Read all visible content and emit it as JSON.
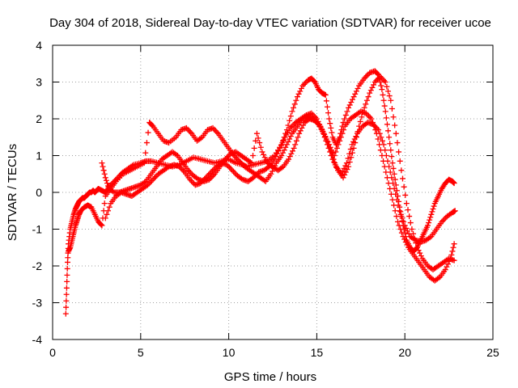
{
  "chart_data": {
    "type": "scatter",
    "title": "Day 304 of 2018, Sidereal Day-to-day VTEC variation (SDTVAR) for receiver ucoe",
    "xlabel": "GPS time / hours",
    "ylabel": "SDTVAR / TECUs",
    "xlim": [
      0,
      25
    ],
    "ylim": [
      -4,
      4
    ],
    "xticks": [
      0,
      5,
      10,
      15,
      20,
      25
    ],
    "yticks": [
      -4,
      -3,
      -2,
      -1,
      0,
      1,
      2,
      3,
      4
    ],
    "grid": true,
    "marker": "plus",
    "series_color": "#ff0000",
    "series": [
      {
        "x": [
          0.75,
          0.8,
          0.85,
          0.9,
          1.0,
          1.1,
          1.2,
          1.3,
          1.4,
          1.5,
          1.6,
          1.7,
          1.8,
          1.9,
          2.0,
          2.1,
          2.2,
          2.3,
          2.4,
          2.5,
          2.6,
          2.8,
          3.0,
          3.2,
          3.5,
          3.8,
          4.0,
          4.3,
          4.6,
          5.0,
          5.3,
          5.6,
          6.0,
          6.4,
          6.8,
          7.2,
          7.6,
          8.0,
          8.4,
          8.8,
          9.2,
          9.6,
          10.0,
          10.4,
          10.8,
          11.0,
          11.4,
          11.8,
          12.2,
          12.6,
          13.0,
          13.3,
          13.6,
          13.9,
          14.2,
          14.5,
          14.7,
          14.9,
          15.1,
          15.3,
          15.5,
          15.7,
          15.9,
          16.1,
          16.3,
          16.5,
          16.8,
          17.1,
          17.4,
          17.7,
          18.0,
          18.3,
          18.5,
          18.7,
          18.9,
          19.1,
          19.3,
          19.5,
          19.7,
          19.9,
          20.1,
          20.3,
          20.5,
          20.7,
          20.9,
          21.1,
          21.3,
          21.5,
          21.7,
          21.9,
          22.1,
          22.3,
          22.5,
          22.7,
          22.8
        ],
        "y": [
          -3.3,
          -2.6,
          -1.9,
          -1.4,
          -1.0,
          -0.8,
          -0.6,
          -0.45,
          -0.35,
          -0.25,
          -0.2,
          -0.15,
          -0.15,
          -0.1,
          -0.05,
          0.0,
          0.0,
          0.05,
          0.0,
          0.05,
          0.1,
          0.05,
          0.0,
          0.15,
          0.3,
          0.45,
          0.55,
          0.65,
          0.75,
          0.8,
          0.85,
          0.85,
          0.8,
          0.75,
          0.7,
          0.75,
          0.85,
          0.95,
          0.9,
          0.85,
          0.8,
          0.85,
          0.9,
          0.8,
          0.75,
          0.7,
          0.75,
          0.8,
          0.85,
          1.0,
          1.3,
          1.7,
          2.2,
          2.6,
          2.9,
          3.05,
          3.1,
          3.0,
          2.8,
          2.7,
          2.65,
          2.0,
          1.5,
          1.3,
          1.5,
          1.9,
          2.3,
          2.6,
          2.9,
          3.1,
          3.25,
          3.3,
          3.2,
          2.8,
          2.2,
          1.5,
          0.8,
          0.2,
          -0.4,
          -0.9,
          -1.3,
          -1.5,
          -1.6,
          -1.5,
          -1.3,
          -1.1,
          -0.9,
          -0.6,
          -0.3,
          -0.1,
          0.1,
          0.25,
          0.35,
          0.3,
          0.25
        ]
      },
      {
        "x": [
          0.9,
          1.0,
          1.1,
          1.2,
          1.3,
          1.4,
          1.5,
          1.6,
          1.8,
          2.0,
          2.2,
          2.4,
          2.6,
          2.8,
          3.0,
          3.3,
          3.6,
          4.0,
          4.4,
          4.8,
          5.2,
          5.5,
          5.7,
          6.0,
          6.3,
          6.6,
          7.0,
          7.3,
          7.6,
          7.9,
          8.2,
          8.5,
          8.8,
          9.1,
          9.4,
          9.7,
          10.0,
          10.3,
          10.6,
          10.9,
          11.2,
          11.5,
          11.8,
          12.1,
          12.4,
          12.7,
          13.0,
          13.3,
          13.6,
          13.9,
          14.2,
          14.5,
          14.8,
          15.1,
          15.4,
          15.7,
          16.0,
          16.3,
          16.6,
          16.9,
          17.2,
          17.5,
          17.8,
          18.1,
          18.4,
          18.7,
          19.0,
          19.3,
          19.6,
          19.9,
          20.2,
          20.5,
          20.8,
          21.1,
          21.4,
          21.7,
          22.0,
          22.3,
          22.6,
          22.8
        ],
        "y": [
          -1.6,
          -1.5,
          -1.3,
          -1.1,
          -0.9,
          -0.75,
          -0.6,
          -0.5,
          -0.4,
          -0.35,
          -0.4,
          -0.6,
          -0.8,
          -0.9,
          -0.1,
          0.1,
          0.3,
          0.5,
          0.6,
          0.7,
          0.8,
          1.9,
          1.8,
          1.6,
          1.4,
          1.35,
          1.5,
          1.7,
          1.75,
          1.6,
          1.4,
          1.5,
          1.7,
          1.75,
          1.6,
          1.4,
          1.2,
          1.0,
          0.85,
          0.7,
          0.6,
          0.5,
          0.4,
          0.3,
          0.5,
          0.8,
          1.0,
          1.3,
          1.6,
          1.8,
          2.0,
          2.05,
          2.0,
          1.85,
          1.6,
          1.3,
          1.0,
          1.4,
          1.8,
          2.0,
          2.1,
          2.2,
          2.15,
          2.0,
          1.6,
          1.0,
          0.4,
          -0.2,
          -0.8,
          -1.2,
          -1.5,
          -1.7,
          -1.9,
          -2.1,
          -2.3,
          -2.4,
          -2.3,
          -2.1,
          -1.8,
          -1.4
        ]
      },
      {
        "x": [
          2.8,
          3.0,
          3.2,
          3.5,
          3.8,
          4.1,
          4.4,
          4.7,
          5.0,
          5.3,
          5.6,
          5.9,
          6.2,
          6.5,
          6.8,
          7.1,
          7.4,
          7.7,
          8.0,
          8.3,
          8.6,
          8.9,
          9.2,
          9.5,
          9.8,
          10.1,
          10.4,
          10.7,
          11.0,
          11.3,
          11.6,
          11.9,
          12.2,
          12.5,
          12.8,
          13.1,
          13.4,
          13.7,
          14.0,
          14.3,
          14.6,
          14.9,
          15.2,
          15.5,
          15.8,
          16.1,
          16.4,
          16.7,
          17.0,
          17.3,
          17.6,
          17.9,
          18.2,
          18.5,
          18.8,
          19.1,
          19.4,
          19.7,
          20.0,
          20.3,
          20.6,
          20.9,
          21.2,
          21.5,
          21.8,
          22.1,
          22.4,
          22.7,
          22.85
        ],
        "y": [
          0.8,
          0.4,
          0.1,
          0.0,
          0.0,
          0.05,
          0.1,
          0.15,
          0.2,
          0.3,
          0.5,
          0.7,
          0.9,
          1.0,
          1.1,
          1.0,
          0.8,
          0.6,
          0.45,
          0.35,
          0.3,
          0.35,
          0.5,
          0.7,
          0.9,
          1.05,
          1.1,
          1.0,
          0.9,
          0.8,
          1.6,
          1.1,
          0.8,
          0.7,
          0.6,
          0.7,
          0.9,
          1.2,
          1.6,
          1.9,
          2.0,
          1.95,
          1.8,
          1.5,
          1.1,
          0.7,
          0.5,
          0.8,
          1.3,
          1.6,
          1.8,
          1.9,
          1.85,
          1.7,
          1.3,
          0.7,
          0.1,
          -0.5,
          -0.9,
          -1.2,
          -1.3,
          -1.35,
          -1.3,
          -1.2,
          -1.0,
          -0.8,
          -0.65,
          -0.55,
          -0.5
        ]
      },
      {
        "x": [
          3.0,
          3.3,
          3.6,
          3.9,
          4.2,
          4.5,
          4.8,
          5.1,
          5.4,
          5.7,
          6.0,
          6.3,
          6.6,
          6.9,
          7.2,
          7.5,
          7.8,
          8.1,
          8.4,
          8.7,
          9.0,
          9.3,
          9.6,
          9.9,
          10.2,
          10.5,
          10.8,
          11.1,
          11.4,
          11.7,
          12.0,
          12.3,
          12.6,
          12.9,
          13.2,
          13.5,
          13.8,
          14.1,
          14.4,
          14.7,
          15.0,
          15.3,
          15.6,
          15.9,
          16.2,
          16.5,
          16.8,
          17.1,
          17.4,
          17.7,
          18.0,
          18.3,
          18.6,
          18.9,
          19.2,
          19.5,
          19.8,
          20.1,
          20.4,
          20.7,
          21.0,
          21.3,
          21.6,
          21.9,
          22.2,
          22.5,
          22.8
        ],
        "y": [
          -0.7,
          -0.3,
          -0.1,
          0.0,
          -0.05,
          -0.1,
          0.0,
          0.1,
          0.2,
          0.35,
          0.5,
          0.6,
          0.7,
          0.75,
          0.7,
          0.55,
          0.35,
          0.2,
          0.25,
          0.4,
          0.55,
          0.7,
          0.8,
          0.75,
          0.6,
          0.45,
          0.35,
          0.3,
          0.4,
          0.55,
          0.6,
          0.7,
          0.9,
          1.2,
          1.5,
          1.75,
          1.9,
          2.0,
          2.1,
          2.15,
          2.0,
          1.7,
          1.3,
          0.9,
          0.6,
          0.4,
          0.7,
          1.2,
          1.8,
          2.3,
          2.7,
          3.0,
          3.15,
          3.0,
          2.5,
          1.6,
          0.6,
          -0.3,
          -1.0,
          -1.5,
          -1.8,
          -2.0,
          -2.1,
          -2.0,
          -1.9,
          -1.8,
          -1.85
        ]
      }
    ]
  }
}
